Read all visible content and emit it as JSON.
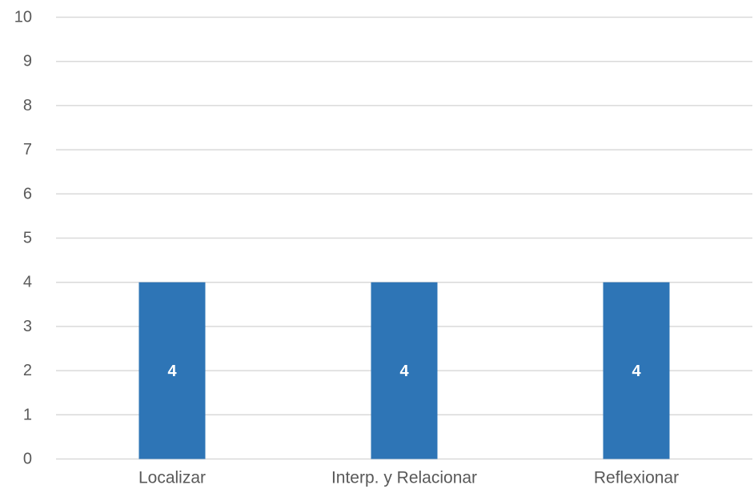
{
  "chart_data": {
    "type": "bar",
    "categories": [
      "Localizar",
      "Interp. y Relacionar",
      "Reflexionar"
    ],
    "values": [
      4,
      4,
      4
    ],
    "data_labels": [
      "4",
      "4",
      "4"
    ],
    "ylim": [
      0,
      10
    ],
    "yticks": [
      "0",
      "1",
      "2",
      "3",
      "4",
      "5",
      "6",
      "7",
      "8",
      "9",
      "10"
    ],
    "grid": true,
    "legend": "none",
    "bar_color": "#2e75b6",
    "data_label_color": "#ffffff",
    "gridline_color": "#d9d9d9",
    "text_color": "#595959"
  }
}
